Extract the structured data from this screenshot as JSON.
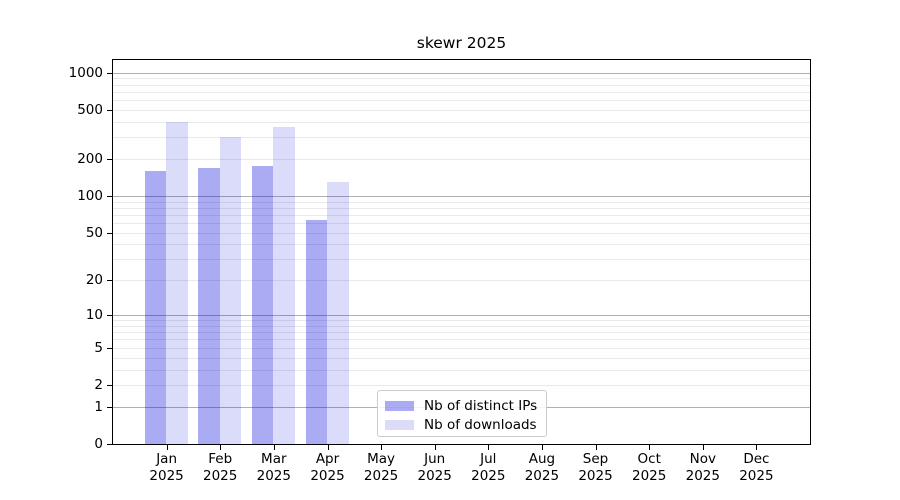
{
  "figure": {
    "title": "skewr 2025"
  },
  "colors": {
    "ips_bar": "rgba(0,0,221,0.33)",
    "downloads_bar": "rgba(0,0,221,0.14)",
    "ips_swatch_hex": "#aaaaf4",
    "downloads_swatch_hex": "#dcdcfa",
    "grid_major": "#b0b0b0",
    "grid_minor": "#e9e9e9",
    "axis": "#000000",
    "legend_border": "#cccccc"
  },
  "legend": {
    "items": [
      {
        "label": "Nb of distinct IPs",
        "series_key": "ips"
      },
      {
        "label": "Nb of downloads",
        "series_key": "downloads"
      }
    ]
  },
  "x_axis": {
    "months": [
      "Jan",
      "Feb",
      "Mar",
      "Apr",
      "May",
      "Jun",
      "Jul",
      "Aug",
      "Sep",
      "Oct",
      "Nov",
      "Dec"
    ],
    "year": "2025"
  },
  "y_axis": {
    "tick_labels": [
      "0",
      "1",
      "2",
      "5",
      "10",
      "20",
      "50",
      "100",
      "200",
      "500",
      "1000"
    ]
  },
  "chart_data": {
    "type": "bar",
    "title": "skewr 2025",
    "categories": [
      "Jan 2025",
      "Feb 2025",
      "Mar 2025",
      "Apr 2025",
      "May 2025",
      "Jun 2025",
      "Jul 2025",
      "Aug 2025",
      "Sep 2025",
      "Oct 2025",
      "Nov 2025",
      "Dec 2025"
    ],
    "series": [
      {
        "name": "Nb of distinct IPs",
        "values": [
          160,
          170,
          175,
          63,
          null,
          null,
          null,
          null,
          null,
          null,
          null,
          null
        ]
      },
      {
        "name": "Nb of downloads",
        "values": [
          400,
          300,
          365,
          130,
          null,
          null,
          null,
          null,
          null,
          null,
          null,
          null
        ]
      }
    ],
    "y_scale": "log10(value+1)",
    "y_ticks": [
      0,
      1,
      2,
      5,
      10,
      20,
      50,
      100,
      200,
      500,
      1000
    ],
    "ylim": [
      0,
      1260
    ],
    "xlabel": "",
    "ylabel": "",
    "grid": "horizontal",
    "legend_position": "lower-center"
  }
}
